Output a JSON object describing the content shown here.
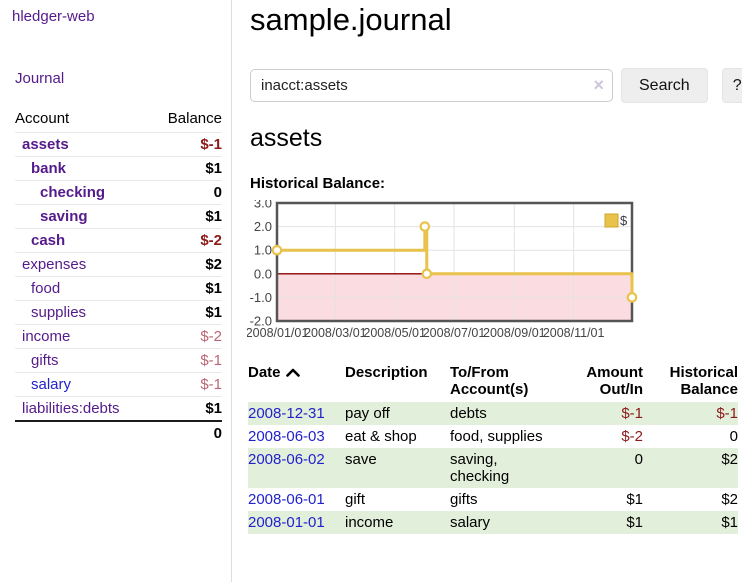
{
  "app": {
    "title": "hledger-web"
  },
  "sidebar": {
    "journal_label": "Journal",
    "accounts_table": {
      "headers": [
        "Account",
        "Balance"
      ],
      "rows": [
        {
          "name": "assets",
          "balance": "$-1",
          "indent": 1,
          "bold": true,
          "balance_class": "neg"
        },
        {
          "name": "bank",
          "balance": "$1",
          "indent": 2,
          "bold": true,
          "balance_class": ""
        },
        {
          "name": "checking",
          "balance": "0",
          "indent": 3,
          "bold": true,
          "balance_class": ""
        },
        {
          "name": "saving",
          "balance": "$1",
          "indent": 3,
          "bold": true,
          "balance_class": ""
        },
        {
          "name": "cash",
          "balance": "$-2",
          "indent": 2,
          "bold": true,
          "balance_class": "neg"
        },
        {
          "name": "expenses",
          "balance": "$2",
          "indent": 1,
          "bold": false,
          "balance_class": ""
        },
        {
          "name": "food",
          "balance": "$1",
          "indent": 2,
          "bold": false,
          "balance_class": ""
        },
        {
          "name": "supplies",
          "balance": "$1",
          "indent": 2,
          "bold": false,
          "balance_class": ""
        },
        {
          "name": "income",
          "balance": "$-2",
          "indent": 1,
          "bold": false,
          "balance_class": "neg-soft"
        },
        {
          "name": "gifts",
          "balance": "$-1",
          "indent": 2,
          "bold": false,
          "balance_class": "neg-soft"
        },
        {
          "name": "salary",
          "balance": "$-1",
          "indent": 2,
          "bold": false,
          "balance_class": "neg-soft",
          "link_color": "blue"
        },
        {
          "name": "liabilities:debts",
          "balance": "$1",
          "indent": 1,
          "bold": false,
          "balance_class": ""
        }
      ],
      "total": "0"
    }
  },
  "main": {
    "title": "sample.journal",
    "search": {
      "value": "inacct:assets",
      "clear_icon": "×",
      "button_label": "Search",
      "help_label": "?"
    },
    "account_heading": "assets"
  },
  "chart_data": {
    "type": "line",
    "style": "step",
    "title": "Historical Balance:",
    "series": [
      {
        "name": "$",
        "points": [
          [
            "2008-01-01",
            1
          ],
          [
            "2008-06-01",
            2
          ],
          [
            "2008-06-03",
            0
          ],
          [
            "2008-12-31",
            -1
          ]
        ]
      }
    ],
    "x_range": [
      "2008-01-01",
      "2008-12-31"
    ],
    "ylim": [
      -2,
      3
    ],
    "y_ticks": [
      3.0,
      2.0,
      1.0,
      0.0,
      -1.0,
      -2.0
    ],
    "x_ticks": [
      "2008/01/01",
      "2008/03/01",
      "2008/05/01",
      "2008/07/01",
      "2008/09/01",
      "2008/11/01"
    ],
    "legend": {
      "label": "$",
      "position": "top-right",
      "color": "#e8c24a"
    },
    "line_color": "#e8c24a",
    "marker_fill": "#ffffff",
    "negative_region_fill": "#fbdde1",
    "zero_line_color": "#8b0000",
    "grid_color": "#e3e3e3",
    "border_color": "#555555"
  },
  "transactions": {
    "headers": [
      "Date",
      "Description",
      "To/From Account(s)",
      "Amount Out/In",
      "Historical Balance"
    ],
    "rows": [
      {
        "date": "2008-12-31",
        "description": "pay off",
        "accounts": "debts",
        "amount": "$-1",
        "balance": "$-1"
      },
      {
        "date": "2008-06-03",
        "description": "eat & shop",
        "accounts": "food, supplies",
        "amount": "$-2",
        "balance": "0"
      },
      {
        "date": "2008-06-02",
        "description": "save",
        "accounts": "saving, checking",
        "amount": "0",
        "balance": "$2"
      },
      {
        "date": "2008-06-01",
        "description": "gift",
        "accounts": "gifts",
        "amount": "$1",
        "balance": "$2"
      },
      {
        "date": "2008-01-01",
        "description": "income",
        "accounts": "salary",
        "amount": "$1",
        "balance": "$1"
      }
    ]
  },
  "colors": {
    "link_purple": "#551a8b",
    "link_blue": "#2222cc",
    "negative_strong": "#8b1a1a",
    "negative_soft": "#bb6672",
    "row_stripe_green": "#e2efdb",
    "chart_gold": "#e8c24a",
    "chart_negative_pink": "#fbdde1",
    "chart_zero_line": "#8b0000",
    "button_gray": "#eeeeee"
  }
}
